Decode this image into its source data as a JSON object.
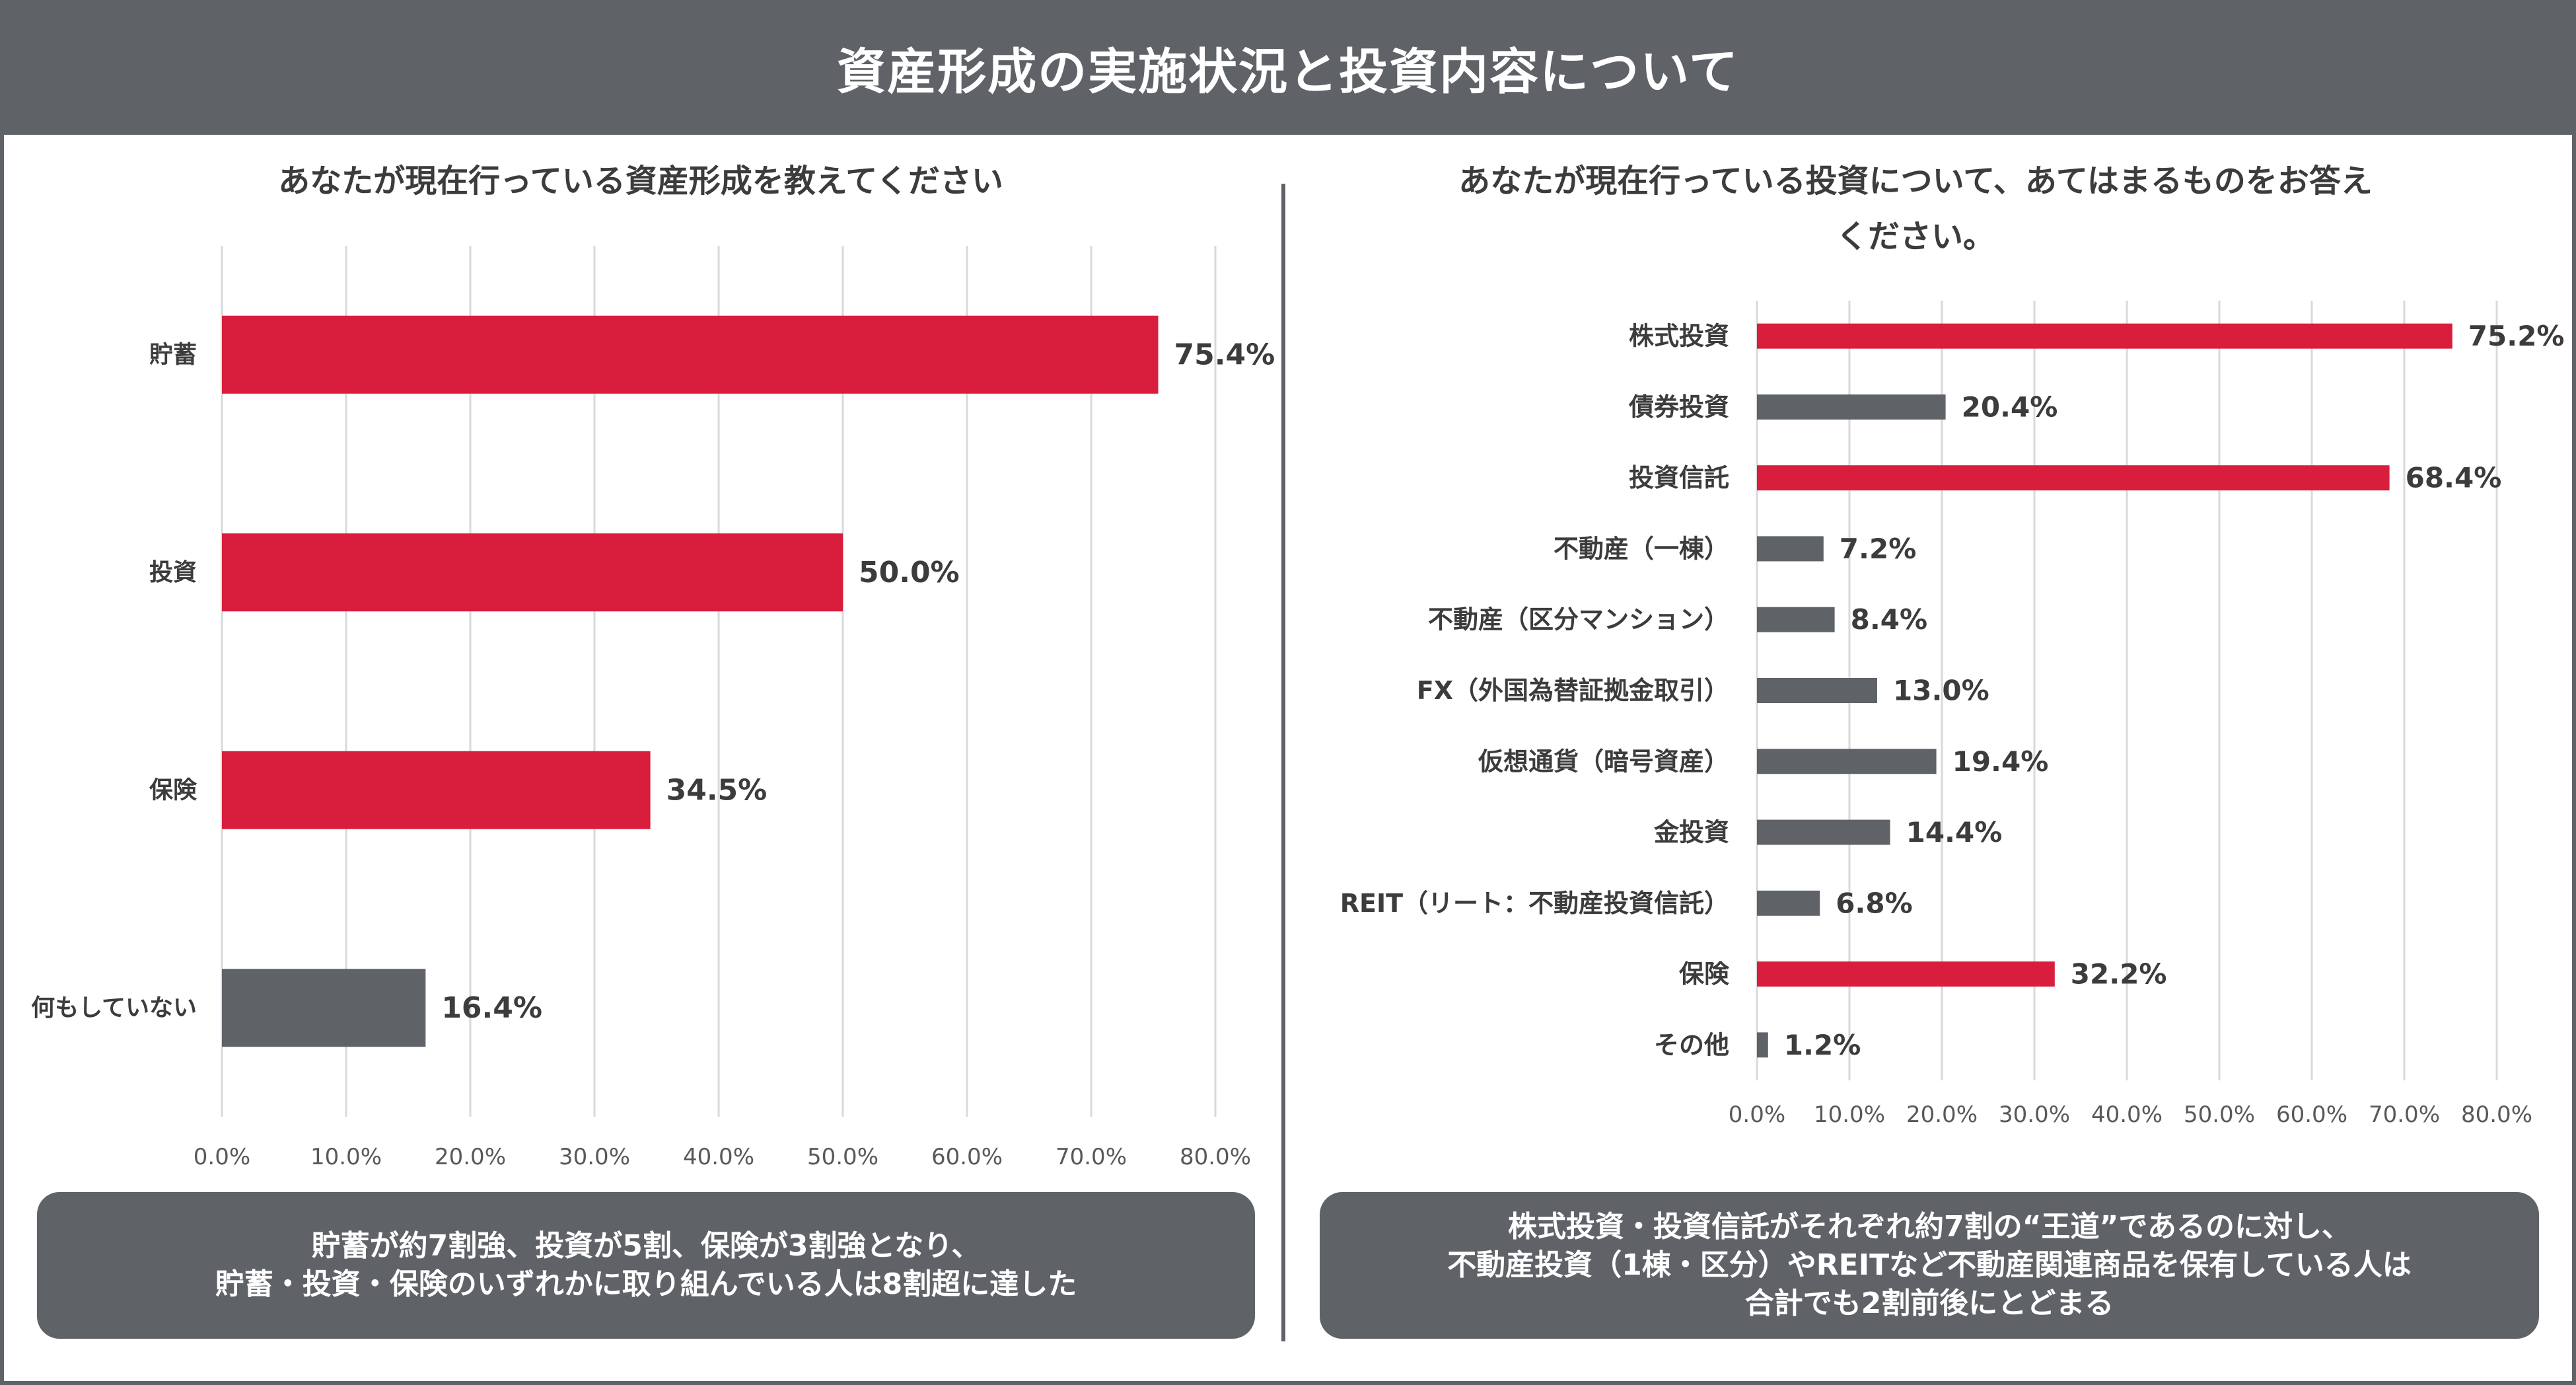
{
  "title": "資産形成の実施状況と投資内容について",
  "left_panel": {
    "question": "あなたが現在行っている資産形成を教えてください",
    "summary_lines": [
      "貯蓄が約7割強、投資が5割、保険が3割強となり、",
      "貯蓄・投資・保険のいずれかに取り組んでいる人は8割超に達した"
    ]
  },
  "right_panel": {
    "question_lines": [
      "あなたが現在行っている投資について、あてはまるものをお答え",
      "ください。"
    ],
    "summary_lines": [
      "株式投資・投資信託がそれぞれ約7割の“王道”であるのに対し、",
      "不動産投資（1棟・区分）やREITなど不動産関連商品を保有している人は",
      "合計でも2割前後にとどまる"
    ]
  },
  "colors": {
    "highlight": "#d81e3c",
    "neutral": "#5f6368",
    "grid": "#d9d9d9"
  },
  "chart_data": [
    {
      "type": "bar",
      "orientation": "horizontal",
      "title": "あなたが現在行っている資産形成を教えてください",
      "categories": [
        "貯蓄",
        "投資",
        "保険",
        "何もしていない"
      ],
      "values": [
        75.4,
        50.0,
        34.5,
        16.4
      ],
      "value_labels": [
        "75.4%",
        "50.0%",
        "34.5%",
        "16.4%"
      ],
      "highlight": [
        true,
        true,
        true,
        false
      ],
      "xlim": [
        0,
        80
      ],
      "x_ticks": [
        "0.0%",
        "10.0%",
        "20.0%",
        "30.0%",
        "40.0%",
        "50.0%",
        "60.0%",
        "70.0%",
        "80.0%"
      ],
      "grid": true
    },
    {
      "type": "bar",
      "orientation": "horizontal",
      "title": "あなたが現在行っている投資について、あてはまるものをお答えください。",
      "categories": [
        "株式投資",
        "債券投資",
        "投資信託",
        "不動産（一棟）",
        "不動産（区分マンション）",
        "FX（外国為替証拠金取引）",
        "仮想通貨（暗号資産）",
        "金投資",
        "REIT（リート：不動産投資信託）",
        "保険",
        "その他"
      ],
      "values": [
        75.2,
        20.4,
        68.4,
        7.2,
        8.4,
        13.0,
        19.4,
        14.4,
        6.8,
        32.2,
        1.2
      ],
      "value_labels": [
        "75.2%",
        "20.4%",
        "68.4%",
        "7.2%",
        "8.4%",
        "13.0%",
        "19.4%",
        "14.4%",
        "6.8%",
        "32.2%",
        "1.2%"
      ],
      "highlight": [
        true,
        false,
        true,
        false,
        false,
        false,
        false,
        false,
        false,
        true,
        false
      ],
      "xlim": [
        0,
        80
      ],
      "x_ticks": [
        "0.0%",
        "10.0%",
        "20.0%",
        "30.0%",
        "40.0%",
        "50.0%",
        "60.0%",
        "70.0%",
        "80.0%"
      ],
      "grid": true
    }
  ]
}
